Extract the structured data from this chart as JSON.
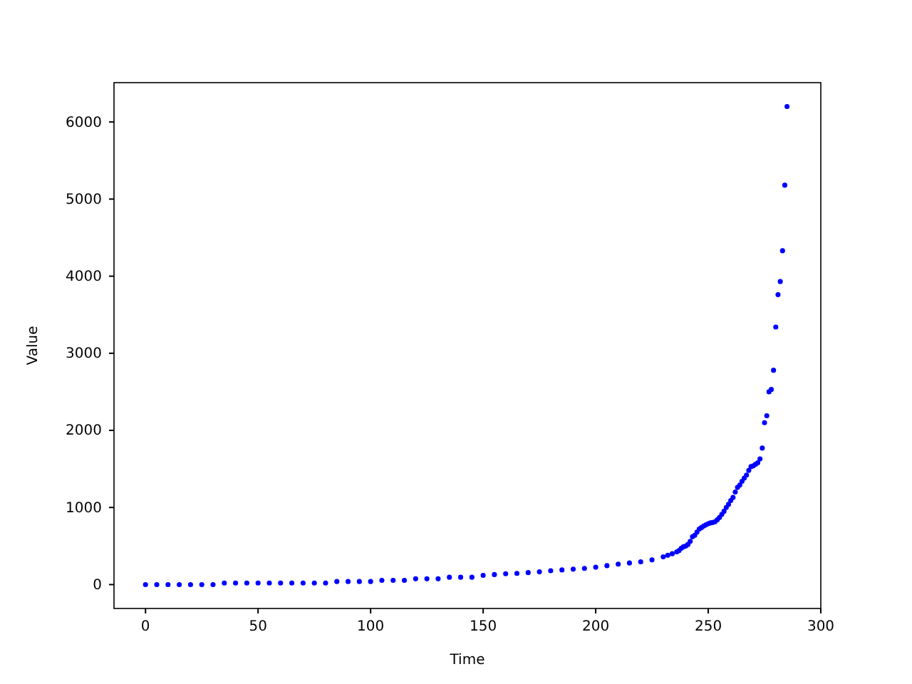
{
  "chart_data": {
    "type": "scatter",
    "xlabel": "Time",
    "ylabel": "Value",
    "x": [
      0,
      5,
      10,
      15,
      20,
      25,
      30,
      35,
      40,
      45,
      50,
      55,
      60,
      65,
      70,
      75,
      80,
      85,
      90,
      95,
      100,
      105,
      110,
      115,
      120,
      125,
      130,
      135,
      140,
      145,
      150,
      155,
      160,
      165,
      170,
      175,
      180,
      185,
      190,
      195,
      200,
      205,
      210,
      215,
      220,
      225,
      230,
      232,
      234,
      236,
      237,
      238,
      239,
      240,
      241,
      242,
      243,
      244,
      245,
      246,
      247,
      248,
      249,
      250,
      251,
      252,
      253,
      254,
      255,
      256,
      257,
      258,
      259,
      260,
      261,
      262,
      263,
      264,
      265,
      266,
      267,
      268,
      269,
      270,
      271,
      272,
      273,
      274,
      275,
      276,
      277,
      278,
      279,
      280,
      281,
      282,
      283,
      284,
      285
    ],
    "series": [
      {
        "color": "#0000ff",
        "values": [
          0,
          0,
          0,
          0,
          0,
          0,
          0,
          20,
          20,
          20,
          20,
          20,
          20,
          20,
          20,
          20,
          20,
          40,
          40,
          40,
          40,
          55,
          55,
          55,
          75,
          75,
          75,
          95,
          95,
          95,
          120,
          130,
          140,
          145,
          155,
          165,
          180,
          190,
          200,
          210,
          225,
          245,
          265,
          280,
          295,
          320,
          360,
          380,
          400,
          425,
          440,
          470,
          490,
          500,
          520,
          560,
          620,
          640,
          680,
          720,
          740,
          760,
          775,
          790,
          800,
          805,
          815,
          840,
          870,
          910,
          950,
          1000,
          1040,
          1090,
          1130,
          1200,
          1260,
          1290,
          1340,
          1380,
          1420,
          1480,
          1530,
          1540,
          1560,
          1580,
          1630,
          1770,
          2100,
          2190,
          2500,
          2530,
          2780,
          3340,
          3760,
          3930,
          4330,
          5180,
          6200
        ]
      }
    ],
    "xlim": [
      -14,
      300
    ],
    "xticks": [
      0,
      50,
      100,
      150,
      200,
      250,
      300
    ],
    "ylim": [
      -310,
      6510
    ],
    "yticks": [
      0,
      1000,
      2000,
      3000,
      4000,
      5000,
      6000
    ],
    "marker": "circle",
    "grid": false
  }
}
